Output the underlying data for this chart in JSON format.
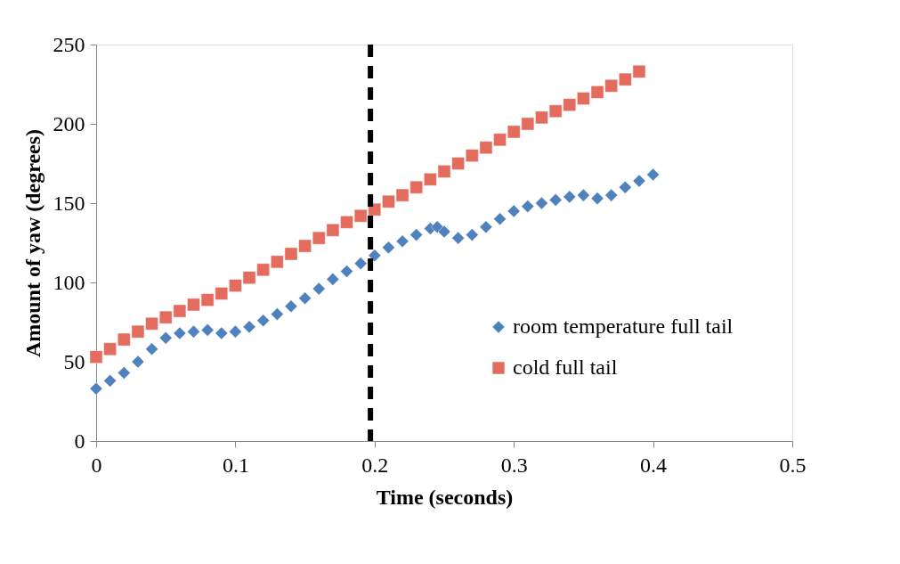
{
  "chart_data": {
    "type": "scatter",
    "xlabel": "Time (seconds)",
    "ylabel": "Amount of yaw (degrees)",
    "xlim": [
      0,
      0.5
    ],
    "xticks": [
      0,
      0.1,
      0.2,
      0.3,
      0.4,
      0.5
    ],
    "ylim": [
      0,
      250
    ],
    "yticks": [
      0,
      50,
      100,
      150,
      200,
      250
    ],
    "grid": false,
    "legend": "right",
    "ref_lines": [
      {
        "axis": "x",
        "value": 0.197,
        "color": "#000000",
        "line_style": "dashed"
      }
    ],
    "series": [
      {
        "name": "room temperature full tail",
        "color": "#4f81bd",
        "marker": "diamond",
        "x": [
          0,
          0.01,
          0.02,
          0.03,
          0.04,
          0.05,
          0.06,
          0.07,
          0.08,
          0.09,
          0.1,
          0.11,
          0.12,
          0.13,
          0.14,
          0.15,
          0.16,
          0.17,
          0.18,
          0.19,
          0.2,
          0.21,
          0.22,
          0.23,
          0.24,
          0.245,
          0.25,
          0.26,
          0.27,
          0.28,
          0.29,
          0.3,
          0.31,
          0.32,
          0.33,
          0.34,
          0.35,
          0.36,
          0.37,
          0.38,
          0.39,
          0.4
        ],
        "values": [
          33,
          38,
          43,
          50,
          58,
          65,
          68,
          69,
          70,
          68,
          69,
          72,
          76,
          80,
          85,
          90,
          96,
          102,
          107,
          112,
          117,
          122,
          126,
          130,
          134,
          135,
          132,
          128,
          130,
          135,
          140,
          145,
          148,
          150,
          152,
          154,
          155,
          153,
          155,
          160,
          164,
          168
        ]
      },
      {
        "name": "cold full tail",
        "color": "#e46c5f",
        "marker": "square",
        "x": [
          0,
          0.01,
          0.02,
          0.03,
          0.04,
          0.05,
          0.06,
          0.07,
          0.08,
          0.09,
          0.1,
          0.11,
          0.12,
          0.13,
          0.14,
          0.15,
          0.16,
          0.17,
          0.18,
          0.19,
          0.2,
          0.21,
          0.22,
          0.23,
          0.24,
          0.25,
          0.26,
          0.27,
          0.28,
          0.29,
          0.3,
          0.31,
          0.32,
          0.33,
          0.34,
          0.35,
          0.36,
          0.37,
          0.38,
          0.39
        ],
        "values": [
          53,
          58,
          64,
          69,
          74,
          78,
          82,
          86,
          89,
          93,
          98,
          103,
          108,
          113,
          118,
          123,
          128,
          133,
          138,
          142,
          146,
          151,
          155,
          160,
          165,
          170,
          175,
          180,
          185,
          190,
          195,
          200,
          204,
          208,
          212,
          216,
          220,
          224,
          228,
          233
        ]
      }
    ]
  }
}
